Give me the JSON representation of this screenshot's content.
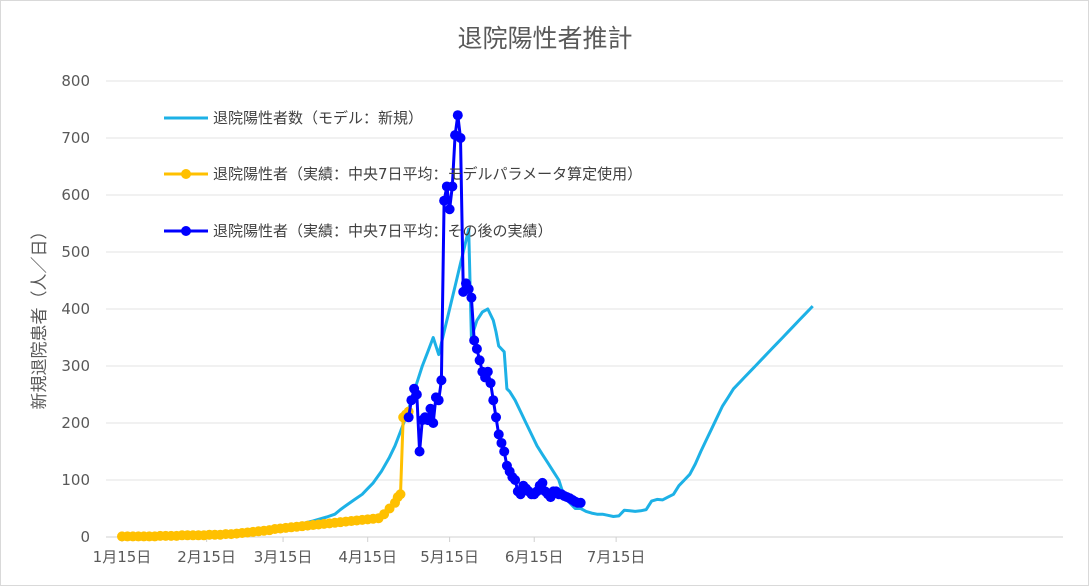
{
  "chart_data": {
    "type": "line",
    "title": "退院陽性者推計",
    "xlabel": "",
    "ylabel": "新規退院患者（人／日）",
    "ylim": [
      0,
      800
    ],
    "yticks": [
      "0",
      "100",
      "200",
      "300",
      "400",
      "500",
      "600",
      "700",
      "800"
    ],
    "xticks": [
      "1月15日",
      "2月15日",
      "3月15日",
      "4月15日",
      "5月15日",
      "6月15日",
      "7月15日"
    ],
    "x_unit": "days since Jan 15",
    "grid": true,
    "legend_position": "top-left",
    "series": [
      {
        "name": "退院陽性者数（モデル：新規）",
        "color": "#1DB1E6",
        "marker": false,
        "x": [
          40,
          45,
          50,
          55,
          60,
          65,
          70,
          75,
          78,
          80,
          82,
          85,
          88,
          90,
          92,
          95,
          98,
          100,
          102,
          104,
          106,
          108,
          110,
          112,
          114,
          116,
          118,
          120,
          122,
          123,
          124,
          125,
          126,
          127,
          128,
          130,
          132,
          134,
          136,
          137,
          138,
          140,
          141,
          142,
          144,
          146,
          148,
          150,
          152,
          154,
          156,
          158,
          160,
          162,
          164,
          166,
          168,
          170,
          172,
          174,
          176,
          178,
          180,
          182,
          184,
          186,
          188,
          190,
          192,
          194,
          196,
          198,
          200,
          202,
          204,
          206,
          208,
          210,
          212,
          214,
          216,
          218,
          220,
          222,
          224,
          226,
          228,
          230,
          232,
          234,
          236,
          238,
          240,
          242,
          244,
          246,
          248,
          250,
          252,
          253
        ],
        "y": [
          5,
          8,
          10,
          14,
          18,
          22,
          28,
          35,
          40,
          48,
          55,
          65,
          75,
          85,
          95,
          115,
          140,
          160,
          185,
          210,
          240,
          270,
          300,
          325,
          350,
          320,
          360,
          400,
          440,
          460,
          480,
          500,
          520,
          540,
          350,
          380,
          395,
          400,
          380,
          360,
          335,
          325,
          260,
          255,
          240,
          220,
          200,
          180,
          160,
          145,
          130,
          115,
          100,
          70,
          60,
          50,
          50,
          45,
          42,
          40,
          40,
          38,
          36,
          37,
          47,
          46,
          45,
          46,
          48,
          63,
          66,
          65,
          70,
          75,
          90,
          100,
          110,
          128,
          150,
          170,
          190,
          210,
          230,
          245,
          260,
          270,
          280,
          290,
          300,
          310,
          320,
          330,
          340,
          350,
          360,
          370,
          380,
          390,
          400,
          405
        ]
      },
      {
        "name": "退院陽性者（実績：中央7日平均：モデルパラメータ算定使用）",
        "color": "#FFC000",
        "marker": true,
        "x": [
          0,
          2,
          4,
          6,
          8,
          10,
          12,
          14,
          16,
          18,
          20,
          22,
          24,
          26,
          28,
          30,
          32,
          34,
          36,
          38,
          40,
          42,
          44,
          46,
          48,
          50,
          52,
          54,
          56,
          58,
          60,
          62,
          64,
          66,
          68,
          70,
          72,
          74,
          76,
          78,
          80,
          82,
          84,
          86,
          88,
          90,
          92,
          94,
          96,
          98,
          100,
          101,
          102,
          103,
          104,
          105
        ],
        "y": [
          1,
          1,
          1,
          1,
          1,
          1,
          1,
          2,
          2,
          2,
          2,
          3,
          3,
          3,
          3,
          3,
          4,
          4,
          4,
          5,
          5,
          6,
          7,
          8,
          9,
          10,
          11,
          12,
          14,
          15,
          16,
          17,
          18,
          19,
          20,
          21,
          22,
          23,
          24,
          25,
          26,
          27,
          28,
          29,
          30,
          31,
          32,
          33,
          40,
          50,
          60,
          70,
          75,
          210,
          215,
          220
        ]
      },
      {
        "name": "退院陽性者（実績：中央7日平均：その後の実績）",
        "color": "#0000FF",
        "marker": true,
        "x": [
          105,
          106,
          107,
          108,
          109,
          110,
          111,
          112,
          113,
          114,
          115,
          116,
          117,
          118,
          119,
          120,
          121,
          122,
          123,
          124,
          125,
          126,
          127,
          128,
          129,
          130,
          131,
          132,
          133,
          134,
          135,
          136,
          137,
          138,
          139,
          140,
          141,
          142,
          143,
          144,
          145,
          146,
          147,
          148,
          149,
          150,
          151,
          152,
          153,
          154,
          155,
          156,
          157,
          158,
          159,
          160,
          161,
          162,
          163,
          164,
          165,
          166,
          167,
          168
        ],
        "y": [
          210,
          240,
          260,
          250,
          150,
          205,
          210,
          205,
          225,
          200,
          245,
          240,
          275,
          590,
          615,
          575,
          615,
          705,
          740,
          700,
          430,
          445,
          435,
          420,
          345,
          330,
          310,
          290,
          280,
          290,
          270,
          240,
          210,
          180,
          165,
          150,
          125,
          115,
          105,
          100,
          80,
          75,
          90,
          85,
          80,
          75,
          75,
          80,
          90,
          95,
          80,
          75,
          70,
          80,
          80,
          75,
          75,
          72,
          70,
          68,
          65,
          62,
          60,
          60
        ]
      }
    ]
  }
}
